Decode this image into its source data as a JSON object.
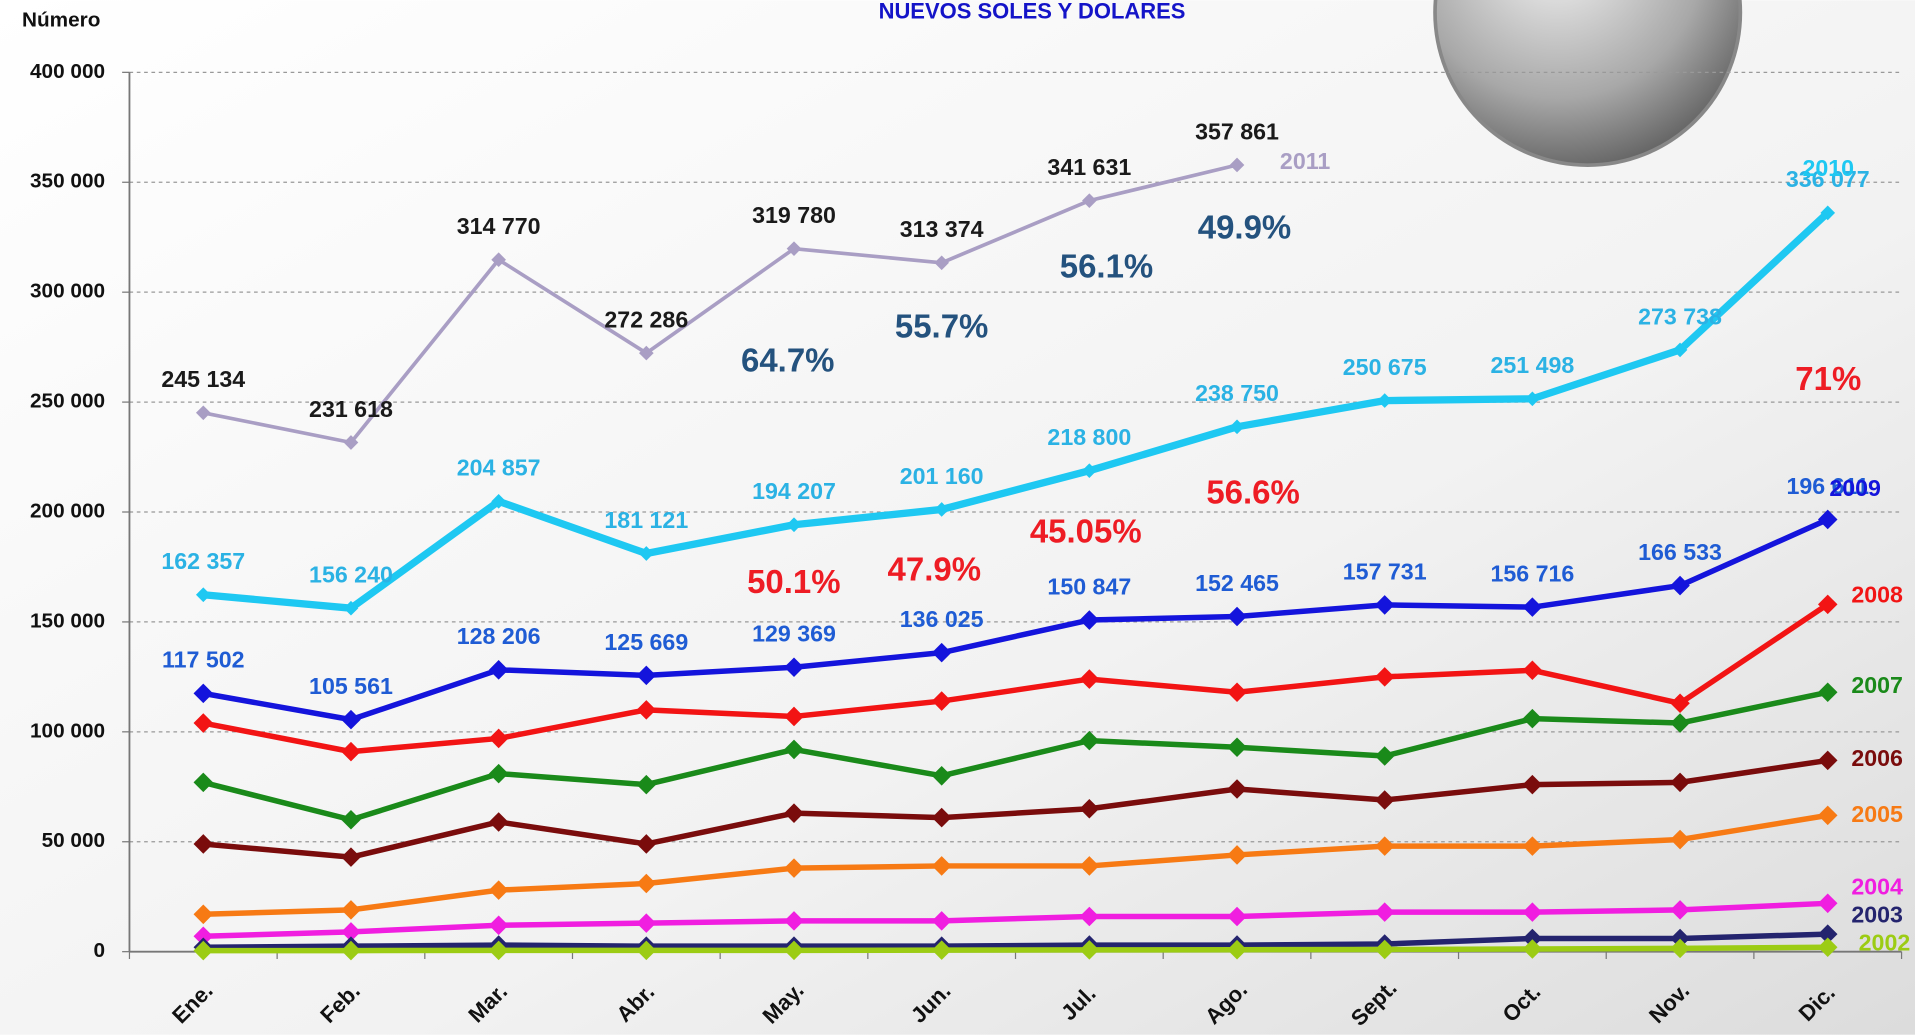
{
  "chart_data": {
    "type": "line",
    "title": "NUEVOS SOLES Y  DOLARES",
    "y_label": "Número",
    "categories": [
      "Ene.",
      "Feb.",
      "Mar.",
      "Abr.",
      "May.",
      "Jun.",
      "Jul.",
      "Ago.",
      "Sept.",
      "Oct.",
      "Nov.",
      "Dic."
    ],
    "ylim": [
      0,
      400000
    ],
    "yticks": [
      {
        "value": 0,
        "label": "0"
      },
      {
        "value": 50000,
        "label": "50 000"
      },
      {
        "value": 100000,
        "label": "100 000"
      },
      {
        "value": 150000,
        "label": "150 000"
      },
      {
        "value": 200000,
        "label": "200 000"
      },
      {
        "value": 250000,
        "label": "250 000"
      },
      {
        "value": 300000,
        "label": "300 000"
      },
      {
        "value": 350000,
        "label": "350 000"
      },
      {
        "value": 400000,
        "label": "400 000"
      }
    ],
    "grid": true,
    "series": [
      {
        "name": "2011",
        "color": "#a99ec4",
        "label_color": "#1a1a1a",
        "values": [
          245134,
          231618,
          314770,
          272286,
          319780,
          313374,
          341631,
          357861,
          null,
          null,
          null,
          null
        ],
        "value_labels": [
          "245 134",
          "231 618",
          "314 770",
          "272 286",
          "319 780",
          "313 374",
          "341 631",
          "357 861",
          null,
          null,
          null,
          null
        ]
      },
      {
        "name": "2010",
        "color": "#1ec8f2",
        "label_color": "#2bb2e4",
        "values": [
          162357,
          156240,
          204857,
          181121,
          194207,
          201160,
          218800,
          238750,
          250675,
          251498,
          273738,
          336077
        ],
        "value_labels": [
          "162 357",
          "156 240",
          "204 857",
          "181 121",
          "194 207",
          "201 160",
          "218 800",
          "238 750",
          "250 675",
          "251 498",
          "273 738",
          "336 077"
        ]
      },
      {
        "name": "2009",
        "color": "#1414dc",
        "label_color": "#1f5cd4",
        "values": [
          117502,
          105561,
          128206,
          125669,
          129369,
          136025,
          150847,
          152465,
          157731,
          156716,
          166533,
          196611
        ],
        "value_labels": [
          "117 502",
          "105 561",
          "128 206",
          "125 669",
          "129 369",
          "136 025",
          "150 847",
          "152 465",
          "157 731",
          "156 716",
          "166 533",
          "196 611"
        ]
      },
      {
        "name": "2008",
        "color": "#f21414",
        "values": [
          104000,
          91000,
          97000,
          110000,
          107000,
          114000,
          124000,
          118000,
          125000,
          128000,
          113000,
          158000
        ]
      },
      {
        "name": "2007",
        "color": "#1a8a1a",
        "values": [
          77000,
          60000,
          81000,
          76000,
          92000,
          80000,
          96000,
          93000,
          89000,
          106000,
          104000,
          118000
        ]
      },
      {
        "name": "2006",
        "color": "#7a0c0c",
        "values": [
          49000,
          43000,
          59000,
          49000,
          63000,
          61000,
          65000,
          74000,
          69000,
          76000,
          77000,
          87000
        ]
      },
      {
        "name": "2005",
        "color": "#f77a14",
        "values": [
          17000,
          19000,
          28000,
          31000,
          38000,
          39000,
          39000,
          44000,
          48000,
          48000,
          51000,
          62000
        ]
      },
      {
        "name": "2004",
        "color": "#f01ee0",
        "values": [
          7000,
          9000,
          12000,
          13000,
          14000,
          14000,
          16000,
          16000,
          18000,
          18000,
          19000,
          22000
        ]
      },
      {
        "name": "2003",
        "color": "#24246e",
        "values": [
          2000,
          2500,
          3000,
          2500,
          2500,
          2500,
          3000,
          3000,
          3500,
          6000,
          6000,
          8000
        ]
      },
      {
        "name": "2002",
        "color": "#9ccc14",
        "values": [
          500,
          500,
          600,
          600,
          600,
          700,
          800,
          900,
          1000,
          1200,
          1500,
          2000
        ]
      }
    ],
    "annotations": [
      {
        "text": "64.7%",
        "color": "#24527e"
      },
      {
        "text": "55.7%",
        "color": "#24527e"
      },
      {
        "text": "56.1%",
        "color": "#24527e"
      },
      {
        "text": "49.9%",
        "color": "#24527e"
      },
      {
        "text": "50.1%",
        "color": "#ee1c24"
      },
      {
        "text": "47.9%",
        "color": "#ee1c24"
      },
      {
        "text": "45.05%",
        "color": "#ee1c24"
      },
      {
        "text": "56.6%",
        "color": "#ee1c24"
      },
      {
        "text": "71%",
        "color": "#ee1c24"
      }
    ]
  }
}
